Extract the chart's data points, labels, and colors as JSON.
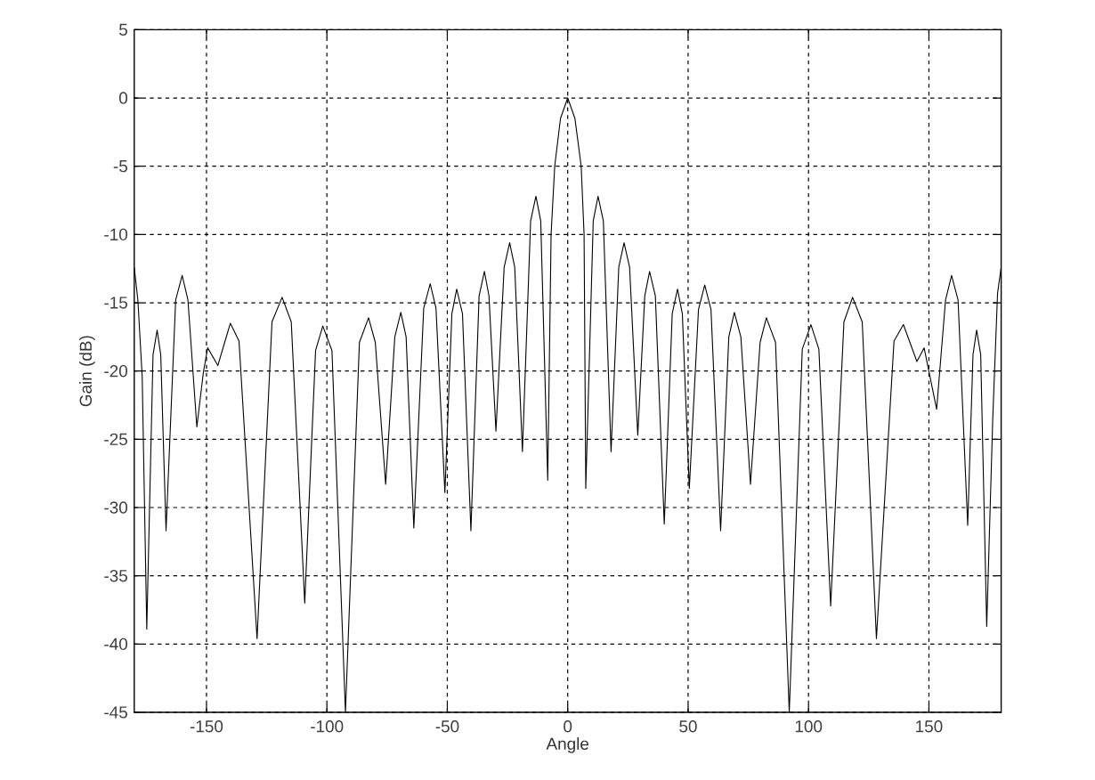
{
  "chart_data": {
    "type": "line",
    "xlabel": "Angle",
    "ylabel": "Gain (dB)",
    "x": [
      -180,
      -178.5,
      -176.7,
      -174.8,
      -172.2,
      -170.5,
      -169.0,
      -166.8,
      -162.8,
      -160.1,
      -157.7,
      -154.0,
      -151.3,
      -149.5,
      -145.3,
      -140.1,
      -136.5,
      -129.0,
      -122.8,
      -118.6,
      -114.8,
      -109.2,
      -104.7,
      -101.7,
      -97.9,
      -92.3,
      -86.5,
      -82.7,
      -79.9,
      -75.6,
      -71.8,
      -69.3,
      -67.1,
      -63.9,
      -59.8,
      -57.1,
      -54.7,
      -51.0,
      -48.1,
      -46.1,
      -43.7,
      -40.2,
      -36.8,
      -34.6,
      -32.7,
      -29.8,
      -26.4,
      -24.1,
      -22.0,
      -18.8,
      -15.4,
      -13.2,
      -11.2,
      -8.3,
      -6.9,
      -5.4,
      -3.0,
      0,
      3.0,
      5.6,
      6.8,
      7.5,
      10.6,
      12.6,
      14.8,
      18.0,
      21.2,
      23.4,
      25.7,
      29.1,
      32.0,
      34.0,
      36.4,
      40.1,
      43.4,
      45.6,
      47.6,
      50.5,
      54.3,
      56.9,
      59.5,
      63.5,
      66.9,
      69.2,
      71.9,
      75.9,
      79.9,
      82.5,
      86.3,
      92.0,
      97.4,
      101.0,
      104.3,
      109.2,
      114.7,
      118.3,
      122.3,
      128.2,
      135.5,
      139.4,
      145.0,
      148.0,
      153.2,
      156.9,
      159.4,
      162.1,
      166.1,
      168.3,
      169.8,
      171.5,
      174.0,
      176.5,
      178.5,
      180
    ],
    "series": [
      {
        "color": "#000000",
        "values": [
          -12.4,
          -14.8,
          -20.4,
          -38.9,
          -18.8,
          -17.0,
          -18.8,
          -31.7,
          -14.8,
          -13.0,
          -14.8,
          -24.1,
          -20.1,
          -18.3,
          -19.6,
          -16.5,
          -17.8,
          -39.6,
          -16.4,
          -14.6,
          -16.4,
          -37.0,
          -18.5,
          -16.7,
          -18.5,
          -45,
          -17.9,
          -16.1,
          -17.9,
          -28.3,
          -17.5,
          -15.7,
          -17.5,
          -31.5,
          -15.4,
          -13.6,
          -15.4,
          -28.9,
          -15.8,
          -14.0,
          -15.8,
          -31.7,
          -14.5,
          -12.7,
          -14.5,
          -24.4,
          -12.4,
          -10.6,
          -12.4,
          -25.9,
          -9.0,
          -7.2,
          -9.0,
          -28.0,
          -10,
          -5,
          -1.5,
          0,
          -1.5,
          -5,
          -10,
          -28.6,
          -9.0,
          -7.2,
          -9.0,
          -25.9,
          -12.4,
          -10.6,
          -12.4,
          -24.7,
          -14.5,
          -12.7,
          -14.5,
          -31.2,
          -15.8,
          -14.0,
          -15.8,
          -28.6,
          -15.5,
          -13.7,
          -15.5,
          -31.7,
          -17.5,
          -15.7,
          -17.5,
          -28.3,
          -17.9,
          -16.1,
          -17.9,
          -45,
          -18.4,
          -16.6,
          -18.4,
          -37.2,
          -16.4,
          -14.6,
          -16.4,
          -39.6,
          -17.8,
          -16.6,
          -19.3,
          -18.3,
          -22.8,
          -14.8,
          -13.0,
          -14.8,
          -31.3,
          -18.8,
          -17.0,
          -18.8,
          -38.7,
          -23.5,
          -14.3,
          -12.4
        ]
      }
    ],
    "xlim": [
      -180,
      180
    ],
    "ylim": [
      -45,
      5
    ],
    "xticks": [
      -150,
      -100,
      -50,
      0,
      50,
      100,
      150
    ],
    "yticks": [
      -45,
      -40,
      -35,
      -30,
      -25,
      -20,
      -15,
      -10,
      -5,
      0,
      5
    ],
    "grid": true,
    "line_style": "solid"
  }
}
